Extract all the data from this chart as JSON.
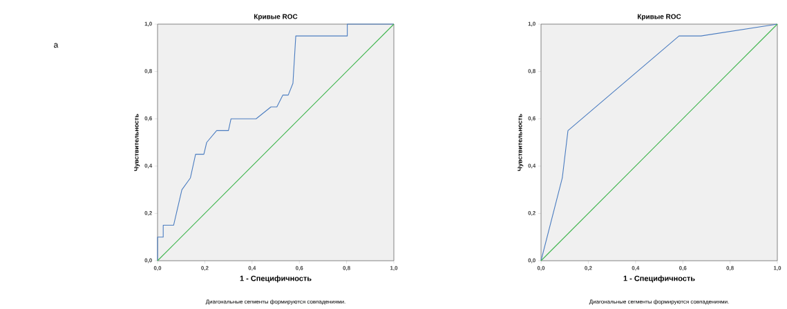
{
  "chart_data": [
    {
      "type": "line",
      "title": "Кривые ROC",
      "xlabel": "1 - Специфичность",
      "ylabel": "Чувствительность",
      "annotations": [
        "Диагональные сегменты формируются совпадениями.",
        "a"
      ],
      "xlim": [
        0,
        1
      ],
      "ylim": [
        0,
        1
      ],
      "xticks": [
        {
          "value": 0,
          "label": "0,0"
        },
        {
          "value": 0.2,
          "label": "0,2"
        },
        {
          "value": 0.4,
          "label": "0,4"
        },
        {
          "value": 0.6,
          "label": "0,6"
        },
        {
          "value": 0.8,
          "label": "0,8"
        },
        {
          "value": 1,
          "label": "1,0"
        }
      ],
      "yticks": [
        {
          "value": 0,
          "label": "0,0"
        },
        {
          "value": 0.2,
          "label": "0,2"
        },
        {
          "value": 0.4,
          "label": "0,4"
        },
        {
          "value": 0.6,
          "label": "0,6"
        },
        {
          "value": 0.8,
          "label": "0,8"
        },
        {
          "value": 1,
          "label": "1,0"
        }
      ],
      "series": [
        {
          "color": "#4a7cc0",
          "x": [
            0,
            0,
            0.024,
            0.024,
            0.068,
            0.103,
            0.139,
            0.161,
            0.196,
            0.208,
            0.25,
            0.3,
            0.311,
            0.417,
            0.48,
            0.505,
            0.53,
            0.553,
            0.573,
            0.585,
            0.803,
            0.803,
            1
          ],
          "values": [
            0,
            0.1,
            0.1,
            0.15,
            0.15,
            0.3,
            0.35,
            0.45,
            0.45,
            0.5,
            0.55,
            0.55,
            0.6,
            0.6,
            0.65,
            0.65,
            0.7,
            0.7,
            0.75,
            0.95,
            0.95,
            1,
            1
          ]
        },
        {
          "color": "#3cb44b",
          "x": [
            0,
            1
          ],
          "values": [
            0,
            1
          ]
        }
      ]
    },
    {
      "type": "line",
      "title": "Кривые ROC",
      "xlabel": "1 - Специфичность",
      "ylabel": "Чувствительность",
      "annotations": [
        "Диагональные сегменты формируются совпадениями."
      ],
      "xlim": [
        0,
        1
      ],
      "ylim": [
        0,
        1
      ],
      "xticks": [
        {
          "value": 0,
          "label": "0,0"
        },
        {
          "value": 0.2,
          "label": "0,2"
        },
        {
          "value": 0.4,
          "label": "0,4"
        },
        {
          "value": 0.6,
          "label": "0,6"
        },
        {
          "value": 0.8,
          "label": "0,8"
        },
        {
          "value": 1,
          "label": "1,0"
        }
      ],
      "yticks": [
        {
          "value": 0,
          "label": "0,0"
        },
        {
          "value": 0.2,
          "label": "0,2"
        },
        {
          "value": 0.4,
          "label": "0,4"
        },
        {
          "value": 0.6,
          "label": "0,6"
        },
        {
          "value": 0.8,
          "label": "0,8"
        },
        {
          "value": 1,
          "label": "1,0"
        }
      ],
      "series": [
        {
          "color": "#4a7cc0",
          "x": [
            0,
            0.09,
            0.114,
            0.584,
            0.677,
            1
          ],
          "values": [
            0,
            0.35,
            0.55,
            0.95,
            0.95,
            1
          ]
        },
        {
          "color": "#3cb44b",
          "x": [
            0,
            1
          ],
          "values": [
            0,
            1
          ]
        }
      ]
    }
  ]
}
